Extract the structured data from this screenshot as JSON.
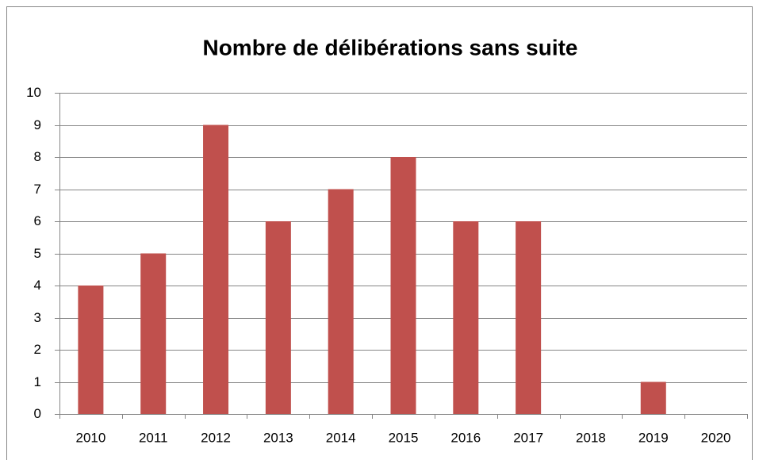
{
  "chart_data": {
    "type": "bar",
    "title": "Nombre de délibérations sans suite",
    "categories": [
      "2010",
      "2011",
      "2012",
      "2013",
      "2014",
      "2015",
      "2016",
      "2017",
      "2018",
      "2019",
      "2020"
    ],
    "values": [
      4,
      5,
      9,
      6,
      7,
      8,
      6,
      6,
      0,
      1,
      0
    ],
    "color": "#c0504d",
    "ylim": [
      0,
      10
    ],
    "yticks": [
      0,
      1,
      2,
      3,
      4,
      5,
      6,
      7,
      8,
      9,
      10
    ],
    "grid": true
  }
}
